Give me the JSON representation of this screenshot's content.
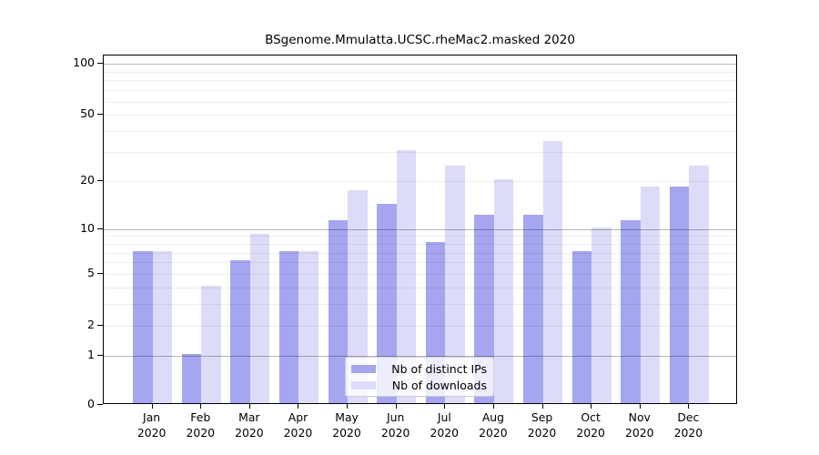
{
  "chart_data": {
    "type": "bar",
    "title": "BSgenome.Mmulatta.UCSC.rheMac2.masked 2020",
    "x_year": "2020",
    "categories": [
      "Jan",
      "Feb",
      "Mar",
      "Apr",
      "May",
      "Jun",
      "Jul",
      "Aug",
      "Sep",
      "Oct",
      "Nov",
      "Dec"
    ],
    "series": [
      {
        "name": "Nb of distinct IPs",
        "color": "#a5a5f0",
        "values": [
          7,
          1,
          6,
          7,
          11,
          14,
          8,
          12,
          12,
          7,
          11,
          18
        ]
      },
      {
        "name": "Nb of downloads",
        "color": "#dcdcf8",
        "values": [
          7,
          4,
          9,
          7,
          17,
          30,
          24,
          20,
          34,
          10,
          18,
          24
        ]
      }
    ],
    "yscale": "log1p",
    "ylim": [
      0,
      110
    ],
    "ytick_labels": [
      0,
      1,
      2,
      5,
      10,
      20,
      50,
      100
    ],
    "major_gridlines": [
      1,
      10,
      100
    ],
    "minor_gridlines": [
      2,
      3,
      4,
      5,
      6,
      7,
      8,
      9,
      20,
      30,
      40,
      50,
      60,
      70,
      80,
      90
    ],
    "grid": true,
    "legend_position": "lower-center",
    "colors": {
      "axis": "#000000",
      "major_grid": "#b8b8b8",
      "minor_grid": "#ededed",
      "background": "#ffffff"
    }
  }
}
